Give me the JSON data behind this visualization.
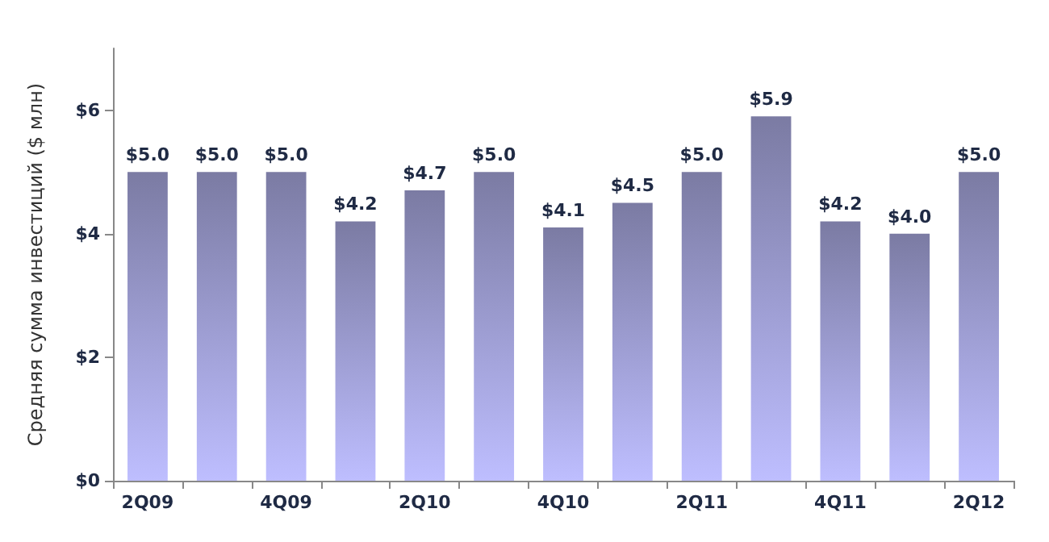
{
  "chart_data": {
    "type": "bar",
    "ylabel": "Средняя сумма инвестиций ($ млн)",
    "categories": [
      "2Q09",
      null,
      "4Q09",
      null,
      "2Q10",
      null,
      "4Q10",
      null,
      "2Q11",
      null,
      "4Q11",
      null,
      "2Q12"
    ],
    "values": [
      5.0,
      5.0,
      5.0,
      4.2,
      4.7,
      5.0,
      4.1,
      4.5,
      5.0,
      5.9,
      4.2,
      4.0,
      5.0
    ],
    "value_labels": [
      "$5.0",
      "$5.0",
      "$5.0",
      "$4.2",
      "$4.7",
      "$5.0",
      "$4.1",
      "$4.5",
      "$5.0",
      "$5.9",
      "$4.2",
      "$4.0",
      "$5.0"
    ],
    "color": "#7b7ba3",
    "ylim": [
      0,
      7
    ],
    "yticks": [
      {
        "value": 0,
        "label": "$0"
      },
      {
        "value": 2,
        "label": "$2"
      },
      {
        "value": 4,
        "label": "$4"
      },
      {
        "value": 6,
        "label": "$6"
      }
    ],
    "grid": false
  }
}
